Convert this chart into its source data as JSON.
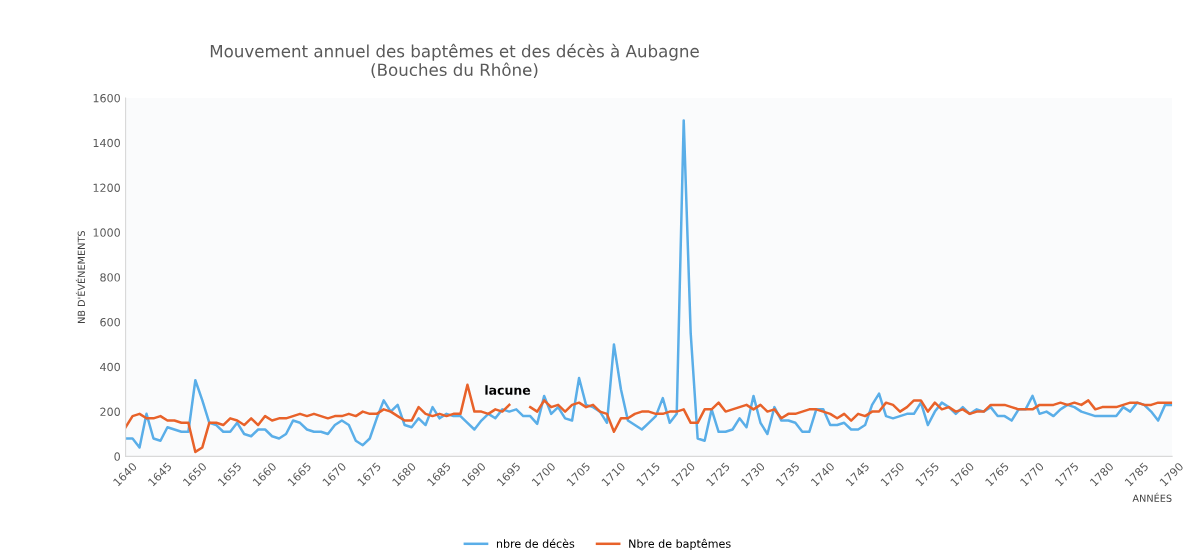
{
  "chart_data": {
    "type": "line",
    "title": "Mouvement annuel des baptêmes et des décès à Aubagne\n(Bouches du Rhône)",
    "xlabel": "ANNÉES",
    "ylabel": "NB D'ÉVÉNEMENTS",
    "x": [
      1640,
      1641,
      1642,
      1643,
      1644,
      1645,
      1646,
      1647,
      1648,
      1649,
      1650,
      1651,
      1652,
      1653,
      1654,
      1655,
      1656,
      1657,
      1658,
      1659,
      1660,
      1661,
      1662,
      1663,
      1664,
      1665,
      1666,
      1667,
      1668,
      1669,
      1670,
      1671,
      1672,
      1673,
      1674,
      1675,
      1676,
      1677,
      1678,
      1679,
      1680,
      1681,
      1682,
      1683,
      1684,
      1685,
      1686,
      1687,
      1688,
      1689,
      1690,
      1691,
      1692,
      1693,
      1694,
      1695,
      1696,
      1697,
      1698,
      1699,
      1700,
      1701,
      1702,
      1703,
      1704,
      1705,
      1706,
      1707,
      1708,
      1709,
      1710,
      1711,
      1712,
      1713,
      1714,
      1715,
      1716,
      1717,
      1718,
      1719,
      1720,
      1721,
      1722,
      1723,
      1724,
      1725,
      1726,
      1727,
      1728,
      1729,
      1730,
      1731,
      1732,
      1733,
      1734,
      1735,
      1736,
      1737,
      1738,
      1739,
      1740,
      1741,
      1742,
      1743,
      1744,
      1745,
      1746,
      1747,
      1748,
      1749,
      1750,
      1751,
      1752,
      1753,
      1754,
      1755,
      1756,
      1757,
      1758,
      1759,
      1760,
      1761,
      1762,
      1763,
      1764,
      1765,
      1766,
      1767,
      1768,
      1769,
      1770,
      1771,
      1772,
      1773,
      1774,
      1775,
      1776,
      1777,
      1778,
      1779,
      1780,
      1781,
      1782,
      1783,
      1784,
      1785,
      1786,
      1787,
      1788,
      1789,
      1790
    ],
    "series": [
      {
        "name": "nbre de décès",
        "color": "#5aaee8",
        "values": [
          80,
          80,
          40,
          190,
          80,
          70,
          130,
          120,
          110,
          110,
          340,
          250,
          150,
          140,
          110,
          110,
          150,
          100,
          90,
          120,
          120,
          90,
          80,
          100,
          160,
          150,
          120,
          110,
          110,
          100,
          140,
          160,
          140,
          70,
          50,
          80,
          170,
          250,
          200,
          230,
          140,
          130,
          170,
          140,
          220,
          170,
          190,
          180,
          180,
          150,
          120,
          160,
          190,
          170,
          210,
          200,
          210,
          180,
          180,
          145,
          270,
          190,
          220,
          170,
          160,
          350,
          230,
          220,
          200,
          150,
          500,
          300,
          160,
          140,
          120,
          150,
          180,
          260,
          150,
          190,
          1500,
          550,
          80,
          70,
          210,
          110,
          110,
          120,
          170,
          130,
          270,
          150,
          100,
          220,
          160,
          160,
          150,
          110,
          110,
          210,
          210,
          140,
          140,
          150,
          120,
          120,
          140,
          230,
          280,
          180,
          170,
          180,
          190,
          190,
          240,
          140,
          200,
          240,
          220,
          190,
          220,
          190,
          210,
          200,
          220,
          180,
          180,
          160,
          210,
          210,
          270,
          190,
          200,
          180,
          210,
          230,
          220,
          200,
          190,
          180,
          180,
          180,
          180,
          220,
          200,
          240,
          230,
          200,
          160,
          230,
          230
        ]
      },
      {
        "name": "Nbre de baptêmes",
        "color": "#e8622a",
        "values": [
          130,
          180,
          190,
          170,
          170,
          180,
          160,
          160,
          150,
          150,
          20,
          40,
          150,
          150,
          140,
          170,
          160,
          140,
          170,
          140,
          180,
          160,
          170,
          170,
          180,
          190,
          180,
          190,
          180,
          170,
          180,
          180,
          190,
          180,
          200,
          190,
          190,
          210,
          200,
          180,
          160,
          160,
          220,
          190,
          180,
          190,
          180,
          190,
          190,
          320,
          200,
          200,
          190,
          210,
          200,
          230,
          null,
          null,
          220,
          200,
          250,
          220,
          230,
          200,
          230,
          240,
          220,
          230,
          200,
          190,
          110,
          170,
          170,
          190,
          200,
          200,
          190,
          190,
          200,
          200,
          210,
          150,
          150,
          210,
          210,
          240,
          200,
          210,
          220,
          230,
          210,
          230,
          200,
          210,
          170,
          190,
          190,
          200,
          210,
          210,
          200,
          190,
          170,
          190,
          160,
          190,
          180,
          200,
          200,
          240,
          230,
          200,
          220,
          250,
          250,
          200,
          240,
          210,
          220,
          200,
          210,
          190,
          200,
          200,
          230,
          230,
          230,
          220,
          210,
          210,
          210,
          230,
          230,
          230,
          240,
          230,
          240,
          230,
          250,
          210,
          220,
          220,
          220,
          230,
          240,
          240,
          230,
          230,
          240,
          240,
          240
        ]
      }
    ],
    "xlim": [
      1640,
      1790
    ],
    "xticks": [
      1640,
      1645,
      1650,
      1655,
      1660,
      1665,
      1670,
      1675,
      1680,
      1685,
      1690,
      1695,
      1700,
      1705,
      1710,
      1715,
      1720,
      1725,
      1730,
      1735,
      1740,
      1745,
      1750,
      1755,
      1760,
      1765,
      1770,
      1775,
      1780,
      1785,
      1790
    ],
    "ylim": [
      0,
      1600
    ],
    "yticks": [
      0,
      200,
      400,
      600,
      800,
      1000,
      1200,
      1400,
      1600
    ],
    "annotations": [
      "lacune"
    ],
    "legend": "bottom",
    "grid": false,
    "marker": "none",
    "line_style": "solid"
  }
}
